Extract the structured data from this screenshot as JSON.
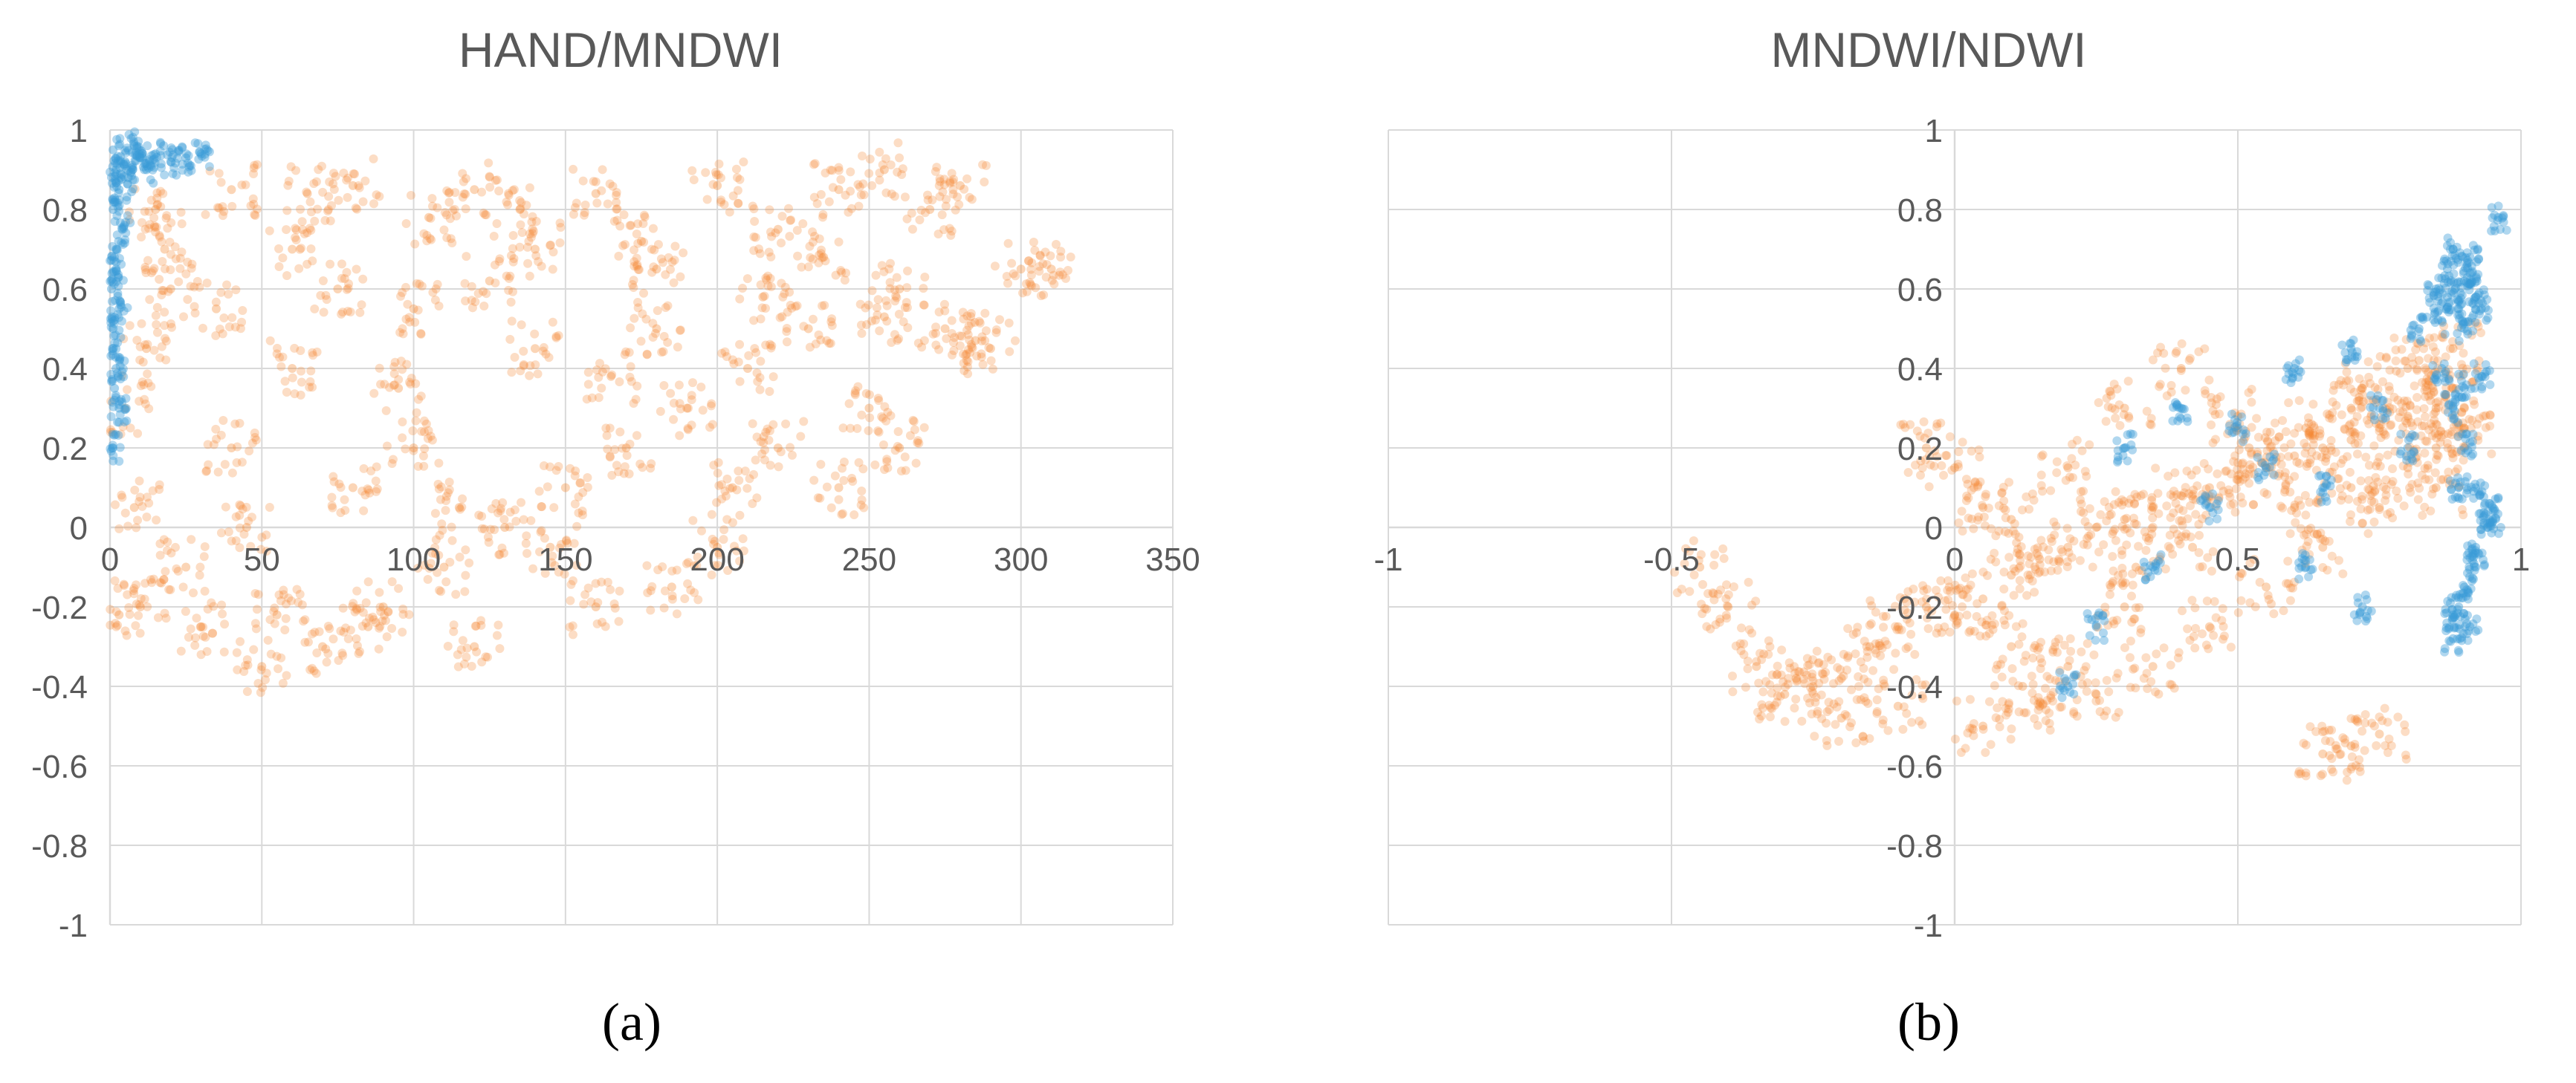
{
  "chart_data": [
    {
      "type": "scatter",
      "title": "HAND/MNDWI",
      "xlabel": "",
      "ylabel": "",
      "xlim": [
        0,
        350
      ],
      "ylim": [
        -1,
        1
      ],
      "x_ticks": [
        0,
        50,
        100,
        150,
        200,
        250,
        300,
        350
      ],
      "y_ticks": [
        -1,
        -0.8,
        -0.6,
        -0.4,
        -0.2,
        0,
        0.2,
        0.4,
        0.6,
        0.8,
        1
      ],
      "x_tick_labels": [
        "0",
        "50",
        "100",
        "150",
        "200",
        "250",
        "300",
        "350"
      ],
      "y_tick_labels": [
        "-1",
        "-0.8",
        "-0.6",
        "-0.4",
        "-0.2",
        "0",
        "0.2",
        "0.4",
        "0.6",
        "0.8",
        "1"
      ],
      "grid": true,
      "legend": "none",
      "panel_label": "(a)",
      "series": [
        {
          "color": "#f4862f",
          "points": [
            [
              40,
              0.85
            ],
            [
              80,
              0.86
            ],
            [
              120,
              0.85
            ],
            [
              160,
              0.84
            ],
            [
              200,
              0.86
            ],
            [
              240,
              0.85
            ],
            [
              255,
              0.9
            ],
            [
              270,
              0.8
            ],
            [
              280,
              0.86
            ],
            [
              300,
              0.65
            ],
            [
              290,
              0.45
            ],
            [
              260,
              0.6
            ],
            [
              230,
              0.5
            ],
            [
              210,
              0.4
            ],
            [
              190,
              0.3
            ],
            [
              170,
              0.2
            ],
            [
              150,
              0.1
            ],
            [
              130,
              0.0
            ],
            [
              110,
              -0.1
            ],
            [
              90,
              -0.2
            ],
            [
              70,
              -0.3
            ],
            [
              50,
              -0.35
            ],
            [
              30,
              -0.25
            ],
            [
              10,
              -0.2
            ],
            [
              5,
              0.3
            ],
            [
              20,
              0.6
            ],
            [
              60,
              0.7
            ],
            [
              100,
              0.55
            ],
            [
              140,
              0.45
            ],
            [
              180,
              0.65
            ],
            [
              220,
              0.75
            ],
            [
              250,
              0.3
            ],
            [
              240,
              0.1
            ],
            [
              200,
              -0.05
            ],
            [
              160,
              -0.2
            ],
            [
              120,
              -0.3
            ],
            [
              80,
              0.1
            ],
            [
              40,
              0.2
            ],
            [
              15,
              0.8
            ],
            [
              60,
              0.4
            ],
            [
              100,
              0.2
            ],
            [
              140,
              0.7
            ],
            [
              180,
              0.5
            ],
            [
              220,
              0.2
            ],
            [
              260,
              0.2
            ],
            [
              310,
              0.65
            ],
            [
              25,
              -0.1
            ],
            [
              45,
              0.0
            ],
            [
              75,
              0.6
            ],
            [
              95,
              0.35
            ],
            [
              125,
              0.62
            ],
            [
              165,
              0.38
            ],
            [
              185,
              -0.15
            ],
            [
              205,
              0.1
            ],
            [
              235,
              0.68
            ],
            [
              275,
              0.5
            ],
            [
              285,
              0.47
            ],
            [
              255,
              0.53
            ],
            [
              215,
              0.58
            ],
            [
              175,
              0.72
            ],
            [
              135,
              0.8
            ],
            [
              105,
              0.78
            ],
            [
              65,
              0.84
            ],
            [
              35,
              0.55
            ],
            [
              55,
              -0.22
            ],
            [
              85,
              -0.25
            ],
            [
              115,
              0.05
            ],
            [
              145,
              -0.05
            ],
            [
              3,
              -0.22
            ],
            [
              8,
              0.05
            ],
            [
              12,
              0.45
            ],
            [
              18,
              0.7
            ]
          ]
        },
        {
          "color": "#3a9bd8",
          "points": [
            [
              1,
              0.95
            ],
            [
              2,
              0.9
            ],
            [
              3,
              0.85
            ],
            [
              1,
              0.8
            ],
            [
              2,
              0.7
            ],
            [
              0.5,
              0.6
            ],
            [
              1,
              0.5
            ],
            [
              2,
              0.4
            ],
            [
              3,
              0.3
            ],
            [
              1,
              0.2
            ],
            [
              5,
              0.92
            ],
            [
              10,
              0.93
            ],
            [
              15,
              0.94
            ],
            [
              20,
              0.92
            ],
            [
              25,
              0.93
            ],
            [
              30,
              0.94
            ],
            [
              8,
              0.96
            ],
            [
              12,
              0.9
            ],
            [
              4,
              0.75
            ],
            [
              2,
              0.65
            ],
            [
              6,
              0.88
            ],
            [
              0.8,
              0.45
            ],
            [
              1.5,
              0.35
            ],
            [
              3,
              0.55
            ]
          ]
        }
      ]
    },
    {
      "type": "scatter",
      "title": "MNDWI/NDWI",
      "xlabel": "",
      "ylabel": "",
      "xlim": [
        -1,
        1
      ],
      "ylim": [
        -1,
        1
      ],
      "x_ticks": [
        -1,
        -0.5,
        0,
        0.5,
        1
      ],
      "y_ticks": [
        -1,
        -0.8,
        -0.6,
        -0.4,
        -0.2,
        0,
        0.2,
        0.4,
        0.6,
        0.8,
        1
      ],
      "x_tick_labels": [
        "-1",
        "-0.5",
        "0",
        "0.5",
        "1"
      ],
      "y_tick_labels": [
        "-1",
        "-0.8",
        "-0.6",
        "-0.4",
        "-0.2",
        "0",
        "0.2",
        "0.4",
        "0.6",
        "0.8",
        "1"
      ],
      "grid": true,
      "legend": "none",
      "panel_label": "(b)",
      "series": [
        {
          "color": "#f4862f",
          "points": [
            [
              -0.45,
              -0.1
            ],
            [
              -0.35,
              -0.35
            ],
            [
              -0.3,
              -0.42
            ],
            [
              -0.25,
              -0.4
            ],
            [
              -0.2,
              -0.38
            ],
            [
              -0.15,
              -0.3
            ],
            [
              -0.1,
              -0.25
            ],
            [
              -0.05,
              -0.2
            ],
            [
              0.0,
              -0.22
            ],
            [
              0.05,
              -0.18
            ],
            [
              0.1,
              -0.12
            ],
            [
              0.15,
              -0.08
            ],
            [
              0.2,
              -0.05
            ],
            [
              0.25,
              0.0
            ],
            [
              0.3,
              0.02
            ],
            [
              0.35,
              0.05
            ],
            [
              0.4,
              0.08
            ],
            [
              0.45,
              0.1
            ],
            [
              0.5,
              0.12
            ],
            [
              0.55,
              0.15
            ],
            [
              0.6,
              0.18
            ],
            [
              0.65,
              0.2
            ],
            [
              0.7,
              0.22
            ],
            [
              0.75,
              0.25
            ],
            [
              0.8,
              0.28
            ],
            [
              0.85,
              0.3
            ],
            [
              0.88,
              0.35
            ],
            [
              0.88,
              0.45
            ],
            [
              0.8,
              0.4
            ],
            [
              0.7,
              0.3
            ],
            [
              0.05,
              -0.5
            ],
            [
              0.15,
              -0.45
            ],
            [
              0.25,
              -0.42
            ],
            [
              0.35,
              -0.35
            ],
            [
              0.45,
              -0.25
            ],
            [
              0.55,
              -0.15
            ],
            [
              0.65,
              -0.05
            ],
            [
              0.75,
              0.05
            ],
            [
              0.85,
              0.1
            ],
            [
              0.65,
              -0.57
            ],
            [
              0.7,
              -0.55
            ],
            [
              0.75,
              -0.52
            ],
            [
              -0.05,
              0.2
            ],
            [
              0.0,
              0.15
            ],
            [
              0.05,
              0.05
            ],
            [
              0.1,
              -0.3
            ],
            [
              0.2,
              -0.35
            ],
            [
              0.3,
              -0.2
            ],
            [
              -0.1,
              -0.45
            ],
            [
              -0.2,
              -0.48
            ],
            [
              0.2,
              0.15
            ],
            [
              0.3,
              0.3
            ],
            [
              0.4,
              0.4
            ],
            [
              0.5,
              0.28
            ],
            [
              0.6,
              0.05
            ],
            [
              0.7,
              0.1
            ],
            [
              0.8,
              0.15
            ],
            [
              0.85,
              0.2
            ],
            [
              0.9,
              0.3
            ],
            [
              0.1,
              0.02
            ],
            [
              -0.4,
              -0.2
            ],
            [
              -0.28,
              -0.38
            ],
            [
              0.12,
              -0.4
            ],
            [
              0.32,
              -0.1
            ],
            [
              0.42,
              -0.05
            ],
            [
              0.52,
              0.2
            ],
            [
              0.62,
              0.25
            ],
            [
              0.72,
              0.35
            ],
            [
              0.82,
              0.42
            ],
            [
              0.9,
              0.25
            ]
          ]
        },
        {
          "color": "#3a9bd8",
          "points": [
            [
              0.85,
              0.6
            ],
            [
              0.87,
              0.65
            ],
            [
              0.88,
              0.7
            ],
            [
              0.9,
              0.62
            ],
            [
              0.92,
              0.58
            ],
            [
              0.89,
              0.55
            ],
            [
              0.86,
              0.52
            ],
            [
              0.91,
              0.68
            ],
            [
              0.93,
              0.55
            ],
            [
              0.9,
              0.5
            ],
            [
              0.88,
              0.3
            ],
            [
              0.9,
              0.2
            ],
            [
              0.92,
              0.1
            ],
            [
              0.94,
              0.0
            ],
            [
              0.95,
              0.02
            ],
            [
              0.92,
              -0.05
            ],
            [
              0.9,
              -0.15
            ],
            [
              0.89,
              -0.2
            ],
            [
              0.91,
              -0.25
            ],
            [
              0.88,
              -0.22
            ],
            [
              0.55,
              0.15
            ],
            [
              0.45,
              0.05
            ],
            [
              0.35,
              -0.1
            ],
            [
              0.25,
              -0.25
            ],
            [
              0.4,
              0.3
            ],
            [
              0.6,
              0.4
            ],
            [
              0.7,
              0.45
            ],
            [
              0.75,
              0.3
            ],
            [
              0.8,
              0.2
            ],
            [
              0.65,
              0.1
            ],
            [
              0.5,
              0.25
            ],
            [
              0.3,
              0.2
            ],
            [
              0.2,
              -0.4
            ],
            [
              0.62,
              -0.1
            ],
            [
              0.72,
              -0.2
            ],
            [
              0.82,
              0.5
            ],
            [
              0.86,
              0.4
            ],
            [
              0.9,
              0.35
            ],
            [
              0.93,
              0.38
            ],
            [
              0.95,
              0.05
            ],
            [
              0.96,
              0.78
            ],
            [
              0.87,
              0.58
            ],
            [
              0.91,
              0.64
            ],
            [
              0.89,
              0.1
            ],
            [
              0.92,
              -0.1
            ],
            [
              0.88,
              -0.28
            ]
          ]
        }
      ]
    }
  ]
}
